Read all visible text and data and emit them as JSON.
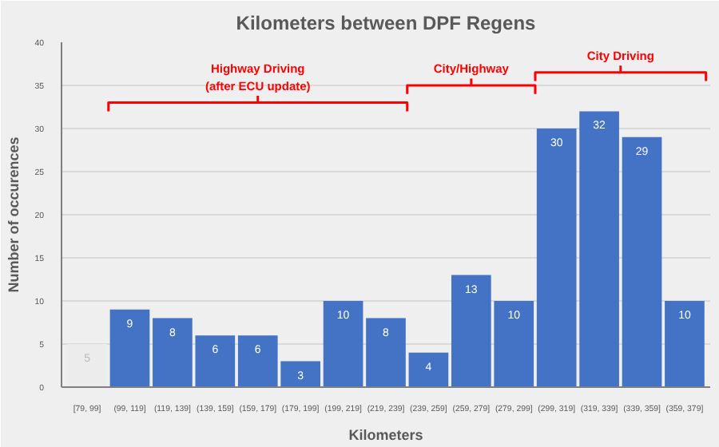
{
  "chart_data": {
    "type": "bar",
    "title": "Kilometers between DPF Regens",
    "xlabel": "Kilometers",
    "ylabel": "Number of occurences",
    "categories": [
      "[79, 99]",
      "(99, 119]",
      "(119, 139]",
      "(139, 159]",
      "(159, 179]",
      "(179, 199]",
      "(199, 219]",
      "(219, 239]",
      "(239, 259]",
      "(259, 279]",
      "(279, 299]",
      "(299, 319]",
      "(319, 339]",
      "(339, 359]",
      "(359, 379]"
    ],
    "values": [
      5,
      9,
      8,
      6,
      6,
      3,
      10,
      8,
      4,
      13,
      10,
      30,
      32,
      29,
      10
    ],
    "colors": [
      "#ececec",
      "#4472c4",
      "#4472c4",
      "#4472c4",
      "#4472c4",
      "#4472c4",
      "#4472c4",
      "#4472c4",
      "#4472c4",
      "#4472c4",
      "#4472c4",
      "#4472c4",
      "#4472c4",
      "#4472c4",
      "#4472c4"
    ],
    "ylim": [
      0,
      40
    ],
    "yticks": [
      0,
      5,
      10,
      15,
      20,
      25,
      30,
      35,
      40
    ],
    "grid": "y",
    "data_labels": true,
    "annotations": [
      "Highway Driving\n(after ECU update)",
      "City/Highway",
      "City Driving"
    ]
  }
}
